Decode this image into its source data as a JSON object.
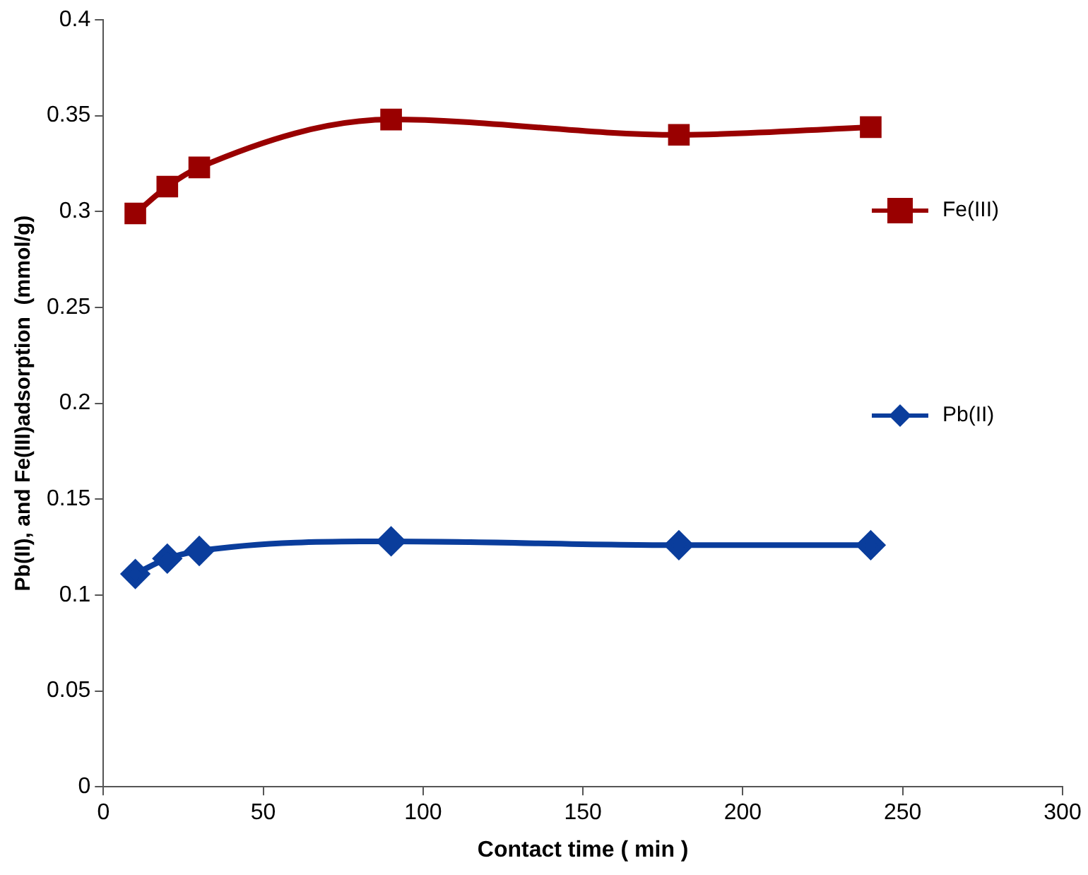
{
  "chart_data": {
    "type": "line",
    "xlabel": "Contact time ( min )",
    "ylabel": "Pb(II), and Fe(III)adsorption  (mmol/g)",
    "x": [
      10,
      20,
      30,
      90,
      180,
      240
    ],
    "series": [
      {
        "name": "Fe(III)",
        "color": "#990000",
        "marker": "square",
        "values": [
          0.299,
          0.313,
          0.323,
          0.348,
          0.34,
          0.344
        ]
      },
      {
        "name": "Pb(II)",
        "color": "#0a3d9c",
        "marker": "diamond",
        "values": [
          0.111,
          0.119,
          0.123,
          0.128,
          0.126,
          0.126
        ]
      }
    ],
    "xlim": [
      0,
      300
    ],
    "xticks": [
      0,
      50,
      100,
      150,
      200,
      250,
      300
    ],
    "ylim": [
      0,
      0.4
    ],
    "yticks": [
      0,
      0.05,
      0.1,
      0.15,
      0.2,
      0.25,
      0.3,
      0.35,
      0.4
    ],
    "grid": false,
    "legend": "right",
    "line_style": "solid"
  }
}
